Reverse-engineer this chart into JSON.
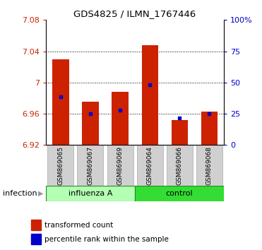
{
  "title": "GDS4825 / ILMN_1767446",
  "samples": [
    "GSM869065",
    "GSM869067",
    "GSM869069",
    "GSM869064",
    "GSM869066",
    "GSM869068"
  ],
  "groups": [
    "influenza A",
    "influenza A",
    "influenza A",
    "control",
    "control",
    "control"
  ],
  "group_labels": [
    "influenza A",
    "control"
  ],
  "bar_bottom": 6.92,
  "bar_tops": [
    7.03,
    6.975,
    6.988,
    7.048,
    6.952,
    6.963
  ],
  "blue_markers": [
    6.982,
    6.96,
    6.965,
    6.997,
    6.955,
    6.96
  ],
  "ylim": [
    6.92,
    7.08
  ],
  "yticks": [
    6.92,
    6.96,
    7.0,
    7.04,
    7.08
  ],
  "ytick_labels": [
    "6.92",
    "6.96",
    "7",
    "7.04",
    "7.08"
  ],
  "y2_ticks_pct": [
    0,
    25,
    50,
    75,
    100
  ],
  "y2_tick_labels": [
    "0",
    "25",
    "50",
    "75",
    "100%"
  ],
  "bar_color": "#cc2200",
  "blue_color": "#0000cc",
  "bar_width": 0.55,
  "bg_color": "#ffffff",
  "tick_color_left": "#cc2200",
  "tick_color_right": "#0000cc",
  "infection_label": "infection",
  "group_light_green": "#b3ffb3",
  "group_dark_green": "#33dd33",
  "sample_box_color": "#d0d0d0",
  "legend_items": [
    "transformed count",
    "percentile rank within the sample"
  ]
}
